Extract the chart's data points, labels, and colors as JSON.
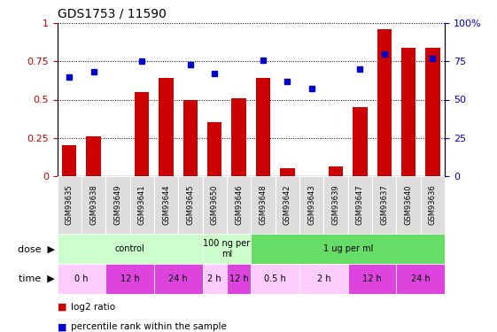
{
  "title": "GDS1753 / 11590",
  "samples": [
    "GSM93635",
    "GSM93638",
    "GSM93649",
    "GSM93641",
    "GSM93644",
    "GSM93645",
    "GSM93650",
    "GSM93646",
    "GSM93648",
    "GSM93642",
    "GSM93643",
    "GSM93639",
    "GSM93647",
    "GSM93637",
    "GSM93640",
    "GSM93636"
  ],
  "log2_ratio": [
    0.2,
    0.26,
    0.0,
    0.55,
    0.64,
    0.5,
    0.35,
    0.51,
    0.64,
    0.05,
    0.0,
    0.06,
    0.45,
    0.96,
    0.84,
    0.84
  ],
  "pct_rank": [
    0.65,
    0.68,
    0.0,
    0.75,
    0.0,
    0.73,
    0.67,
    0.0,
    0.76,
    0.62,
    0.57,
    0.0,
    0.7,
    0.8,
    0.0,
    0.77
  ],
  "dot_has_pct": [
    true,
    true,
    false,
    true,
    false,
    true,
    true,
    false,
    true,
    true,
    true,
    false,
    true,
    true,
    false,
    true
  ],
  "bar_color": "#cc0000",
  "dot_color": "#0000cc",
  "dose_groups": [
    {
      "label": "control",
      "start": 0,
      "end": 6,
      "color": "#ccffcc"
    },
    {
      "label": "100 ng per\nml",
      "start": 6,
      "end": 8,
      "color": "#ccffcc"
    },
    {
      "label": "1 ug per ml",
      "start": 8,
      "end": 16,
      "color": "#66dd66"
    }
  ],
  "time_groups": [
    {
      "label": "0 h",
      "start": 0,
      "end": 2,
      "color": "#ffccff"
    },
    {
      "label": "12 h",
      "start": 2,
      "end": 4,
      "color": "#dd44dd"
    },
    {
      "label": "24 h",
      "start": 4,
      "end": 6,
      "color": "#dd44dd"
    },
    {
      "label": "2 h",
      "start": 6,
      "end": 7,
      "color": "#ffccff"
    },
    {
      "label": "12 h",
      "start": 7,
      "end": 8,
      "color": "#dd44dd"
    },
    {
      "label": "0.5 h",
      "start": 8,
      "end": 10,
      "color": "#ffccff"
    },
    {
      "label": "2 h",
      "start": 10,
      "end": 12,
      "color": "#ffccff"
    },
    {
      "label": "12 h",
      "start": 12,
      "end": 14,
      "color": "#dd44dd"
    },
    {
      "label": "24 h",
      "start": 14,
      "end": 16,
      "color": "#dd44dd"
    }
  ],
  "ylim": [
    0,
    1.0
  ],
  "yticks": [
    0,
    0.25,
    0.5,
    0.75,
    1.0
  ],
  "ytick_labels_left": [
    "0",
    "0.25",
    "0.5",
    "0.75",
    "1"
  ],
  "ytick_labels_right": [
    "0",
    "25",
    "50",
    "75",
    "100%"
  ],
  "legend_log2": "log2 ratio",
  "legend_pct": "percentile rank within the sample",
  "title_fontsize": 10,
  "tick_fontsize": 8,
  "sample_fontsize": 6,
  "label_fontsize": 8,
  "row_label_fontsize": 8
}
